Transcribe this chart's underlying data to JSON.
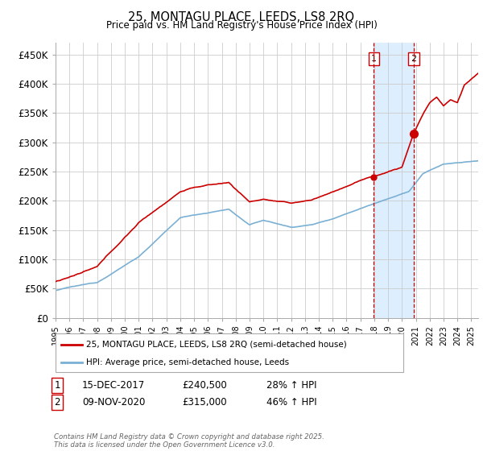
{
  "title": "25, MONTAGU PLACE, LEEDS, LS8 2RQ",
  "subtitle": "Price paid vs. HM Land Registry's House Price Index (HPI)",
  "ylabel_ticks": [
    "£0",
    "£50K",
    "£100K",
    "£150K",
    "£200K",
    "£250K",
    "£300K",
    "£350K",
    "£400K",
    "£450K"
  ],
  "ytick_vals": [
    0,
    50000,
    100000,
    150000,
    200000,
    250000,
    300000,
    350000,
    400000,
    450000
  ],
  "ylim": [
    0,
    470000
  ],
  "xlim_start": 1995.0,
  "xlim_end": 2025.5,
  "hpi_color": "#7ab0d4",
  "price_color": "#cc0000",
  "sale1_date": 2017.958,
  "sale1_price": 240500,
  "sale2_date": 2020.858,
  "sale2_price": 315000,
  "legend_line1": "25, MONTAGU PLACE, LEEDS, LS8 2RQ (semi-detached house)",
  "legend_line2": "HPI: Average price, semi-detached house, Leeds",
  "footer": "Contains HM Land Registry data © Crown copyright and database right 2025.\nThis data is licensed under the Open Government Licence v3.0.",
  "background_color": "#ffffff",
  "grid_color": "#cccccc",
  "span_color": "#ddeeff"
}
